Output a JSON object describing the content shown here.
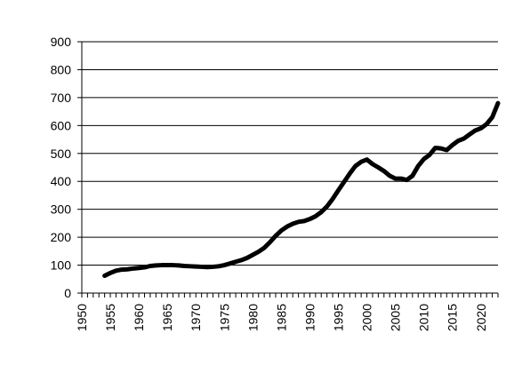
{
  "chart_data": {
    "type": "line",
    "title": "",
    "xlabel": "",
    "ylabel": "",
    "xlim": [
      1950,
      2023
    ],
    "ylim": [
      0,
      900
    ],
    "x_ticks": [
      1950,
      1955,
      1960,
      1965,
      1970,
      1975,
      1980,
      1985,
      1990,
      1995,
      2000,
      2005,
      2010,
      2015,
      2020
    ],
    "y_ticks": [
      0,
      100,
      200,
      300,
      400,
      500,
      600,
      700,
      800,
      900
    ],
    "grid": "horizontal",
    "legend": "none",
    "colors": {
      "line": "#000000",
      "grid": "#000000",
      "background": "#ffffff"
    },
    "series": [
      {
        "x": [
          1954,
          1955,
          1956,
          1957,
          1958,
          1959,
          1960,
          1961,
          1962,
          1963,
          1964,
          1965,
          1966,
          1967,
          1968,
          1969,
          1970,
          1971,
          1972,
          1973,
          1974,
          1975,
          1976,
          1977,
          1978,
          1979,
          1980,
          1981,
          1982,
          1983,
          1984,
          1985,
          1986,
          1987,
          1988,
          1989,
          1990,
          1991,
          1992,
          1993,
          1994,
          1995,
          1996,
          1997,
          1998,
          1999,
          2000,
          2001,
          2002,
          2003,
          2004,
          2005,
          2006,
          2007,
          2008,
          2009,
          2010,
          2011,
          2012,
          2013,
          2014,
          2015,
          2016,
          2017,
          2018,
          2019,
          2020,
          2021,
          2022,
          2023
        ],
        "values": [
          62,
          72,
          80,
          84,
          85,
          88,
          90,
          92,
          97,
          99,
          100,
          100,
          100,
          99,
          97,
          96,
          95,
          94,
          93,
          94,
          96,
          100,
          106,
          112,
          118,
          126,
          137,
          148,
          162,
          182,
          205,
          224,
          238,
          248,
          255,
          258,
          265,
          275,
          290,
          310,
          337,
          368,
          398,
          428,
          455,
          470,
          478,
          462,
          450,
          437,
          420,
          410,
          410,
          405,
          420,
          455,
          480,
          495,
          520,
          518,
          512,
          530,
          545,
          553,
          568,
          582,
          590,
          605,
          630,
          680
        ]
      }
    ]
  }
}
